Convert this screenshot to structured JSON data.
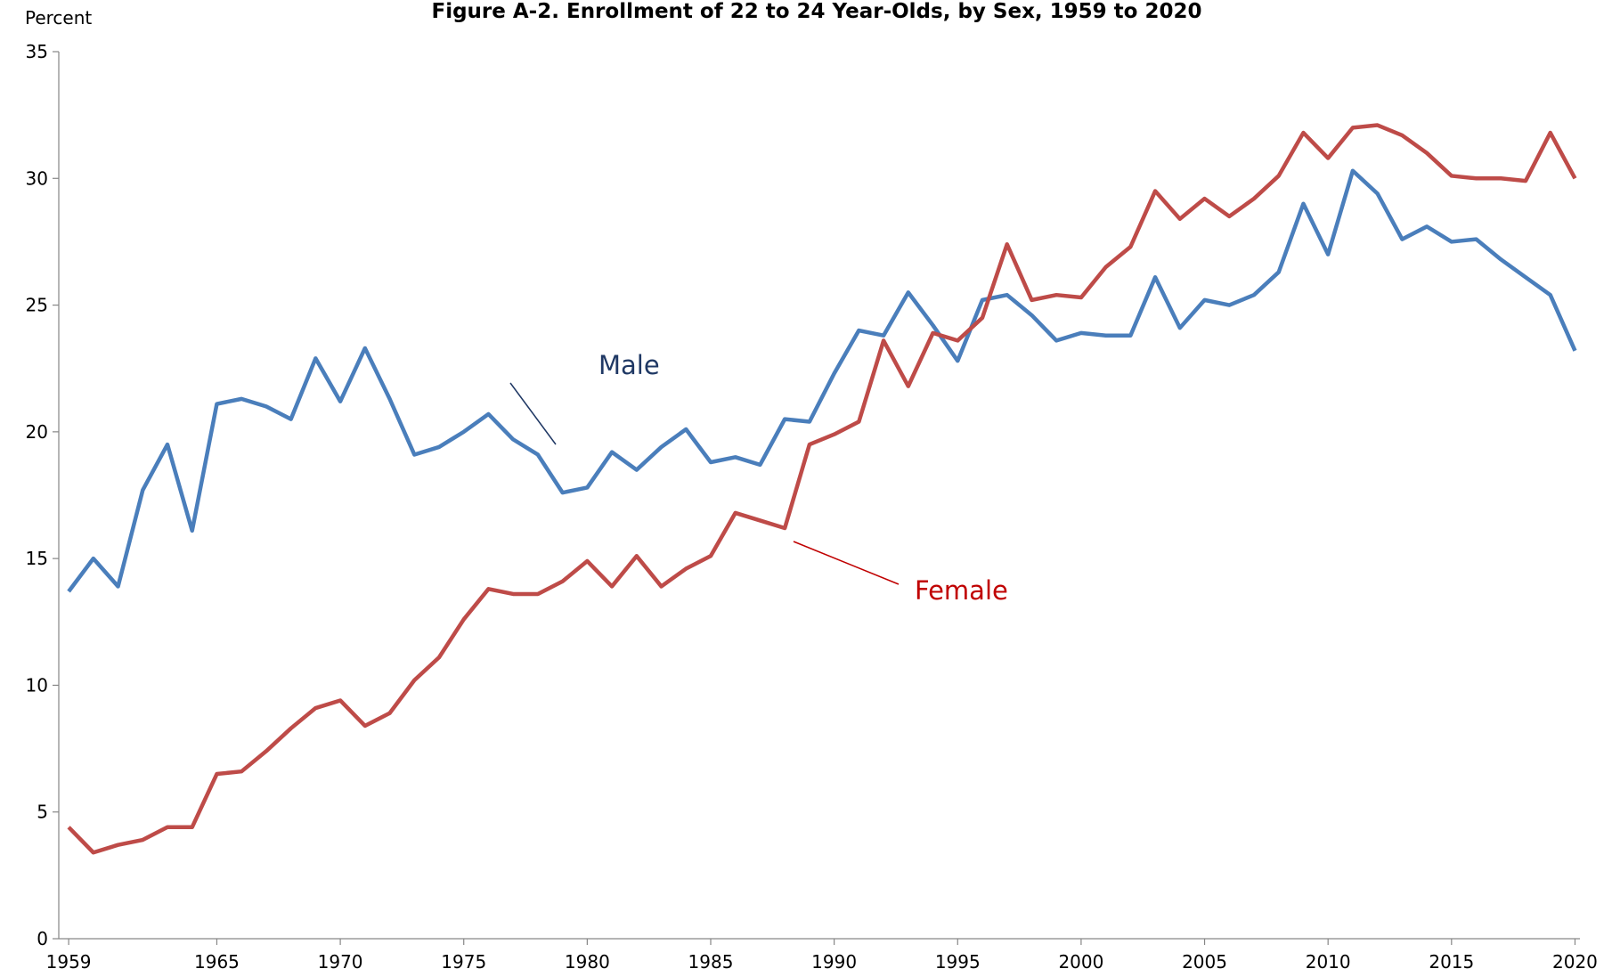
{
  "chart_data": {
    "type": "line",
    "title": "Figure A-2.  Enrollment of 22 to 24 Year-Olds, by Sex, 1959 to 2020",
    "y_label": "Percent",
    "x": [
      1959,
      1960,
      1961,
      1962,
      1963,
      1964,
      1965,
      1966,
      1967,
      1968,
      1969,
      1970,
      1971,
      1972,
      1973,
      1974,
      1975,
      1976,
      1977,
      1978,
      1979,
      1980,
      1981,
      1982,
      1983,
      1984,
      1985,
      1986,
      1987,
      1988,
      1989,
      1990,
      1991,
      1992,
      1993,
      1994,
      1995,
      1996,
      1997,
      1998,
      1999,
      2000,
      2001,
      2002,
      2003,
      2004,
      2005,
      2006,
      2007,
      2008,
      2009,
      2010,
      2011,
      2012,
      2013,
      2014,
      2015,
      2016,
      2017,
      2018,
      2019,
      2020
    ],
    "series": [
      {
        "name": "Male",
        "color": "#4a7ebb",
        "values": [
          13.7,
          15.0,
          13.9,
          17.7,
          19.5,
          16.1,
          21.1,
          21.3,
          21.0,
          20.5,
          22.9,
          21.2,
          23.3,
          21.3,
          19.1,
          19.4,
          20.0,
          20.7,
          19.7,
          19.1,
          17.6,
          17.8,
          19.2,
          18.5,
          19.4,
          20.1,
          18.8,
          19.0,
          18.7,
          20.5,
          20.4,
          22.3,
          24.0,
          23.8,
          25.5,
          24.2,
          22.8,
          25.2,
          25.4,
          24.6,
          23.6,
          23.9,
          23.8,
          23.8,
          26.1,
          24.1,
          25.2,
          25.0,
          25.4,
          26.3,
          29.0,
          27.0,
          30.3,
          29.4,
          27.6,
          28.1,
          27.5,
          27.6,
          26.8,
          26.1,
          25.4,
          23.2
        ]
      },
      {
        "name": "Female",
        "color": "#be4b48",
        "values": [
          4.4,
          3.4,
          3.7,
          3.9,
          4.4,
          4.4,
          6.5,
          6.6,
          7.4,
          8.3,
          9.1,
          9.4,
          8.4,
          8.9,
          10.2,
          11.1,
          12.6,
          13.8,
          13.6,
          13.6,
          14.1,
          14.9,
          13.9,
          15.1,
          13.9,
          14.6,
          15.1,
          16.8,
          16.5,
          16.2,
          19.5,
          19.9,
          20.4,
          23.6,
          21.8,
          23.9,
          23.6,
          24.5,
          27.4,
          25.2,
          25.4,
          25.3,
          26.5,
          27.3,
          29.5,
          28.4,
          29.2,
          28.5,
          29.2,
          30.1,
          31.8,
          30.8,
          32.0,
          32.1,
          31.7,
          31.0,
          30.1,
          30.0,
          30.0,
          29.9,
          31.8,
          30.0
        ]
      }
    ],
    "xlim": [
      1958.6,
      2020.2
    ],
    "xticks": [
      1959,
      1965,
      1970,
      1975,
      1980,
      1985,
      1990,
      1995,
      2000,
      2005,
      2010,
      2015,
      2020
    ],
    "ylim": [
      0,
      35
    ],
    "yticks": [
      0,
      5,
      10,
      15,
      20,
      25,
      30,
      35
    ],
    "grid": false
  }
}
